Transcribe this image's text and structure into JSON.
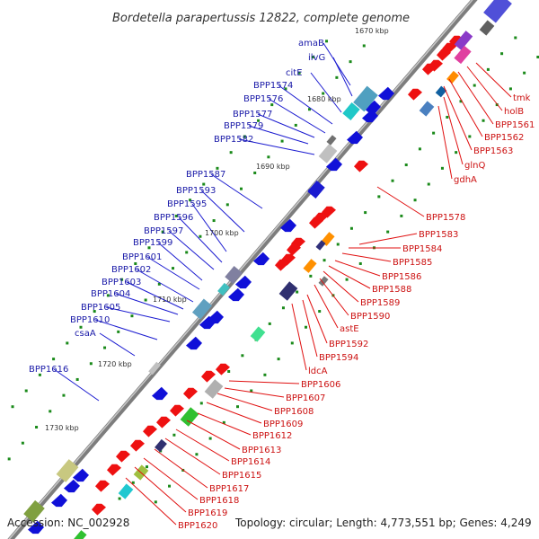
{
  "title": "Bordetella parapertussis 12822, complete genome",
  "footer": {
    "accession": "Accession: NC_002928",
    "summary": "Topology: circular; Length: 4,773,551 bp; Genes: 4,249"
  },
  "colors": {
    "forward_label": "#1a1aa8",
    "reverse_label": "#cc1111",
    "forward_gene": "#1010d8",
    "reverse_gene": "#ee1111",
    "backbone": "#8a8a8a",
    "tick": "#1a8a1a"
  },
  "ruler_ticks_kbp": [
    "1670 kbp",
    "1680 kbp",
    "1690 kbp",
    "1700 kbp",
    "1710 kbp",
    "1720 kbp",
    "1730 kbp"
  ],
  "forward_labels": [
    "amaB",
    "ilvG",
    "citE",
    "BPP1574",
    "BPP1576",
    "BPP1577",
    "BPP1579",
    "BPP1582",
    "BPP1587",
    "BPP1593",
    "BPP1595",
    "BPP1596",
    "BPP1597",
    "BPP1599",
    "BPP1601",
    "BPP1602",
    "BPP1603",
    "BPP1604",
    "BPP1605",
    "BPP1610",
    "csaA",
    "BPP1616"
  ],
  "reverse_labels": [
    "tmk",
    "holB",
    "BPP1561",
    "BPP1562",
    "BPP1563",
    "glnQ",
    "gdhA",
    "BPP1578",
    "BPP1583",
    "BPP1584",
    "BPP1585",
    "BPP1586",
    "BPP1588",
    "BPP1589",
    "BPP1590",
    "astE",
    "BPP1592",
    "BPP1594",
    "ldcA",
    "BPP1606",
    "BPP1607",
    "BPP1608",
    "BPP1609",
    "BPP1612",
    "BPP1613",
    "BPP1614",
    "BPP1615",
    "BPP1617",
    "BPP1618",
    "BPP1619",
    "BPP1620"
  ]
}
